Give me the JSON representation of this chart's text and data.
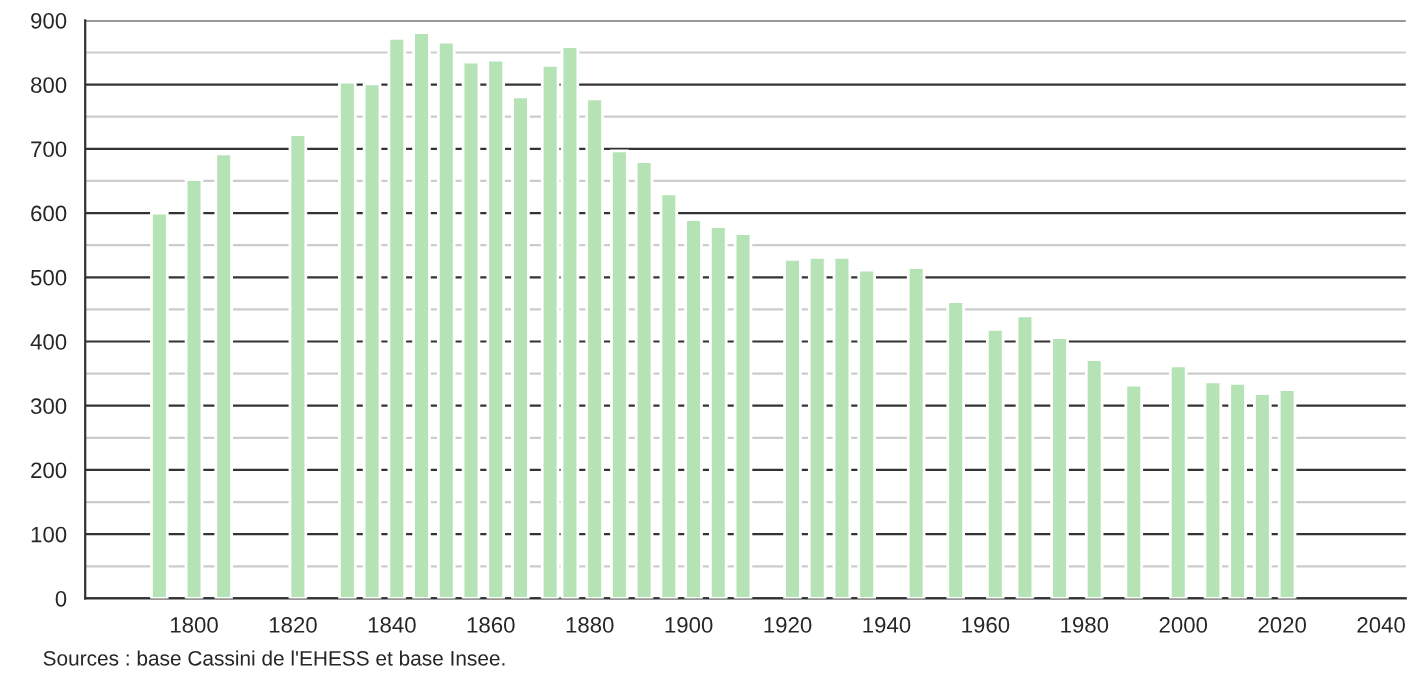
{
  "chart_data": {
    "type": "bar",
    "color": "#b5e3b5",
    "x": [
      1793,
      1800,
      1806,
      1821,
      1831,
      1836,
      1841,
      1846,
      1851,
      1856,
      1861,
      1866,
      1872,
      1876,
      1881,
      1886,
      1891,
      1896,
      1901,
      1906,
      1911,
      1921,
      1926,
      1931,
      1936,
      1946,
      1954,
      1962,
      1968,
      1975,
      1982,
      1990,
      1999,
      2006,
      2011,
      2016,
      2021
    ],
    "values": [
      600,
      652,
      692,
      722,
      804,
      801,
      872,
      881,
      866,
      835,
      838,
      781,
      830,
      859,
      778,
      697,
      680,
      630,
      590,
      579,
      568,
      528,
      531,
      531,
      511,
      515,
      462,
      419,
      440,
      406,
      372,
      332,
      362,
      337,
      335,
      319,
      325
    ],
    "xlim": [
      1778,
      2045
    ],
    "xticks": [
      1800,
      1820,
      1840,
      1860,
      1880,
      1900,
      1920,
      1940,
      1960,
      1980,
      2000,
      2020,
      2040
    ],
    "ylim": [
      0,
      900
    ],
    "yticks": [
      0,
      {
        "value": 50,
        "label": null
      },
      100,
      {
        "value": 150,
        "label": null
      },
      200,
      {
        "value": 250,
        "label": null
      },
      300,
      {
        "value": 350,
        "label": null
      },
      400,
      {
        "value": 450,
        "label": null
      },
      500,
      {
        "value": 550,
        "label": null
      },
      600,
      {
        "value": 650,
        "label": null
      },
      700,
      {
        "value": 750,
        "label": null
      },
      800,
      {
        "value": 850,
        "label": null
      },
      900
    ],
    "grid": "y",
    "annotations": [
      "Sources : base Cassini de l'EHESS et base Insee."
    ]
  }
}
